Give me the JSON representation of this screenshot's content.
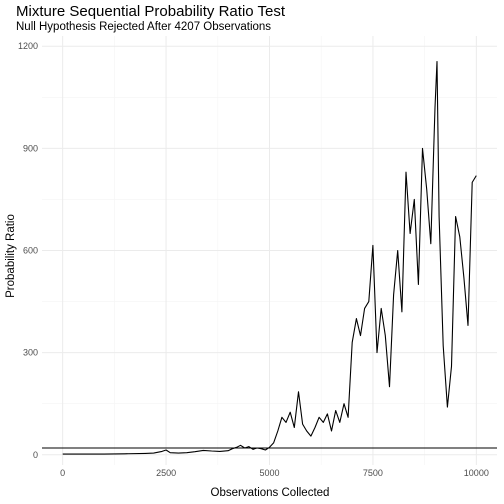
{
  "chart_data": {
    "type": "line",
    "title": "Mixture Sequential Probability Ratio Test",
    "subtitle": "Null Hypothesis Rejected After 4207 Observations",
    "xlabel": "Observations Collected",
    "ylabel": "Probability Ratio",
    "xlim": [
      -500,
      10500
    ],
    "ylim": [
      -30,
      1230
    ],
    "x_ticks": [
      0,
      2500,
      5000,
      7500,
      10000
    ],
    "x_tick_labels": [
      "0",
      "2500",
      "5000",
      "7500",
      "10000"
    ],
    "y_ticks": [
      0,
      300,
      600,
      900,
      1200
    ],
    "y_tick_labels": [
      "0",
      "300",
      "600",
      "900",
      "1200"
    ],
    "grid": true,
    "legend": "none",
    "line_color": "#000000",
    "threshold": {
      "y": 20
    },
    "series": [
      {
        "x": [
          0,
          500,
          1000,
          1500,
          2000,
          2200,
          2400,
          2500,
          2600,
          2800,
          3000,
          3200,
          3400,
          3600,
          3800,
          4000,
          4100,
          4207,
          4300,
          4400,
          4500,
          4600,
          4700,
          4800,
          4900,
          5000,
          5100,
          5200,
          5300,
          5400,
          5500,
          5600,
          5700,
          5800,
          5900,
          6000,
          6100,
          6200,
          6300,
          6400,
          6500,
          6600,
          6700,
          6800,
          6900,
          7000,
          7100,
          7200,
          7300,
          7400,
          7500,
          7600,
          7700,
          7800,
          7900,
          8000,
          8100,
          8200,
          8300,
          8400,
          8500,
          8600,
          8700,
          8800,
          8900,
          9000,
          9050,
          9100,
          9200,
          9300,
          9400,
          9500,
          9600,
          9700,
          9800,
          9900,
          10000
        ],
        "y": [
          2,
          2,
          2,
          3,
          4,
          5,
          10,
          14,
          6,
          5,
          6,
          9,
          13,
          11,
          10,
          12,
          18,
          22,
          28,
          20,
          24,
          16,
          20,
          18,
          14,
          22,
          35,
          70,
          110,
          95,
          125,
          80,
          185,
          90,
          70,
          55,
          80,
          110,
          95,
          120,
          70,
          130,
          95,
          150,
          110,
          330,
          400,
          350,
          430,
          450,
          615,
          300,
          430,
          350,
          200,
          470,
          600,
          420,
          830,
          650,
          750,
          500,
          900,
          780,
          620,
          1020,
          1155,
          700,
          320,
          140,
          260,
          700,
          640,
          520,
          380,
          800,
          820
        ]
      }
    ]
  }
}
